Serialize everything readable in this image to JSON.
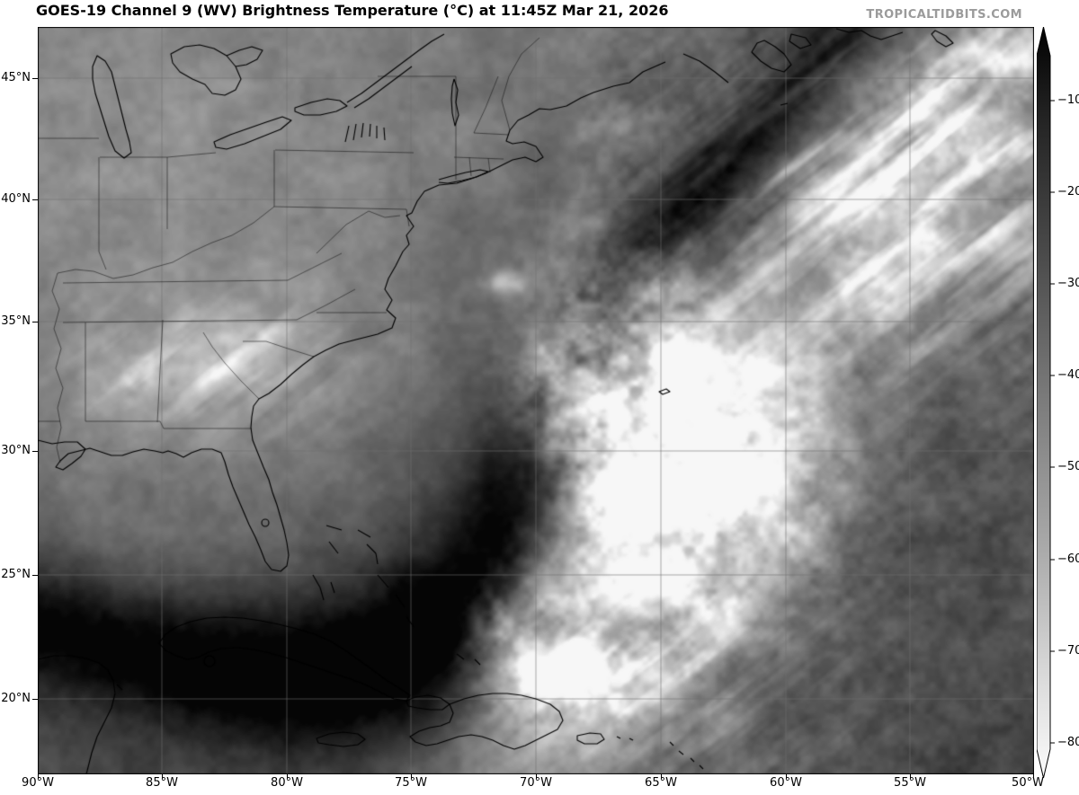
{
  "header": {
    "title": "GOES-19 Channel 9 (WV) Brightness Temperature (°C) at 11:45Z Mar 21, 2026",
    "watermark": "TROPICALTIDBITS.COM"
  },
  "satellite_meta": {
    "satellite": "GOES-19",
    "channel": "9",
    "channel_type": "WV",
    "product": "Brightness Temperature",
    "units": "°C",
    "valid_time": "11:45Z Mar 21, 2026"
  },
  "axes": {
    "lat_labels": [
      "45°N",
      "40°N",
      "35°N",
      "30°N",
      "25°N",
      "20°N"
    ],
    "lon_labels": [
      "90°W",
      "85°W",
      "80°W",
      "75°W",
      "70°W",
      "65°W",
      "60°W",
      "55°W",
      "50°W"
    ]
  },
  "colorbar": {
    "tick_labels": [
      "−10",
      "−20",
      "−30",
      "−40",
      "−50",
      "−60",
      "−70",
      "−80"
    ],
    "orientation": "vertical",
    "extends": "both",
    "top_color": "#000000",
    "bottom_color": "#ffffff"
  },
  "colors": {
    "title": "#000000",
    "watermark": "#9b9b9b",
    "gridline": "#6e6e6e",
    "coastline": "#000000"
  }
}
